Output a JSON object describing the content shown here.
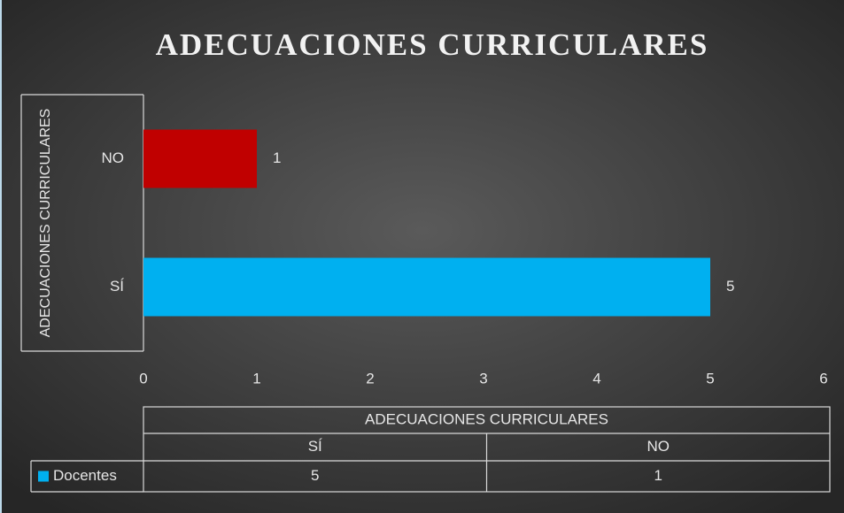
{
  "chart_data": {
    "type": "barh",
    "title": "ADECUACIONES CURRICULARES",
    "ylabel": "ADECUACIONES CURRICULARES",
    "categories": [
      "SÍ",
      "NO"
    ],
    "series": [
      {
        "name": "Docentes",
        "color": "#00b0f0",
        "point_colors": [
          "#00b0f0",
          "#c00000"
        ],
        "values": [
          5,
          1
        ]
      }
    ],
    "xlim": [
      0,
      6
    ],
    "xticks": [
      0,
      1,
      2,
      3,
      4,
      5,
      6
    ],
    "data_table": true
  }
}
